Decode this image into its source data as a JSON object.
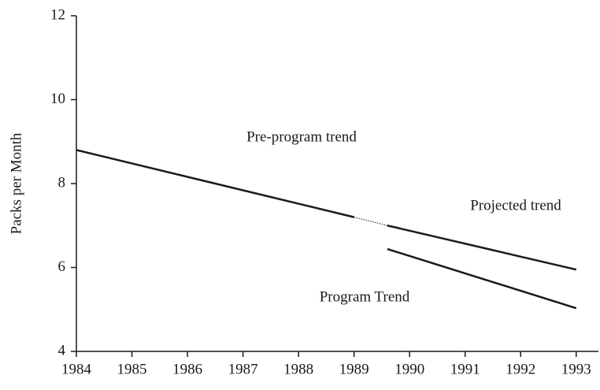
{
  "chart_data": {
    "type": "line",
    "y_label": "Packs per Month",
    "xlim": [
      1984,
      1993.4
    ],
    "xticks": [
      1984,
      1985,
      1986,
      1987,
      1988,
      1989,
      1990,
      1991,
      1992,
      1993
    ],
    "ylim": [
      4,
      12
    ],
    "yticks": [
      4,
      6,
      8,
      10,
      12
    ],
    "grid": false,
    "legend": false,
    "series": [
      {
        "name": "Pre-program trend",
        "color": "#1a1a1a",
        "x": [
          1984,
          1989
        ],
        "values": [
          8.8,
          7.2
        ],
        "dashed_segments": [
          false
        ]
      },
      {
        "name": "Projected trend",
        "color": "#1a1a1a",
        "x": [
          1989,
          1989.6,
          1993
        ],
        "values": [
          7.2,
          7.0,
          5.95
        ],
        "dashed_segments": [
          true,
          false
        ]
      },
      {
        "name": "Program Trend",
        "color": "#1a1a1a",
        "x": [
          1989.6,
          1993
        ],
        "values": [
          6.44,
          5.03
        ],
        "dashed_segments": [
          false
        ]
      }
    ]
  }
}
